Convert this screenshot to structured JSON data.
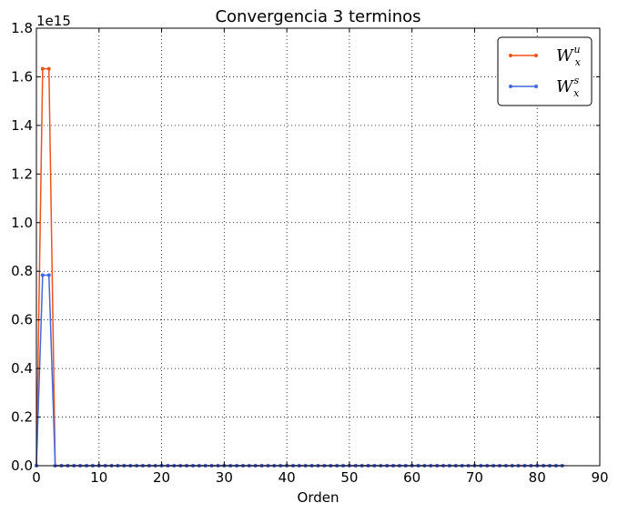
{
  "chart_data": {
    "type": "line",
    "title": "Convergencia 3 terminos",
    "xlabel": "Orden",
    "ylabel": "",
    "offset_text": "1e15",
    "xlim": [
      0,
      90
    ],
    "ylim": [
      0,
      1.8
    ],
    "xticks": [
      "0",
      "10",
      "20",
      "30",
      "40",
      "50",
      "60",
      "70",
      "80",
      "90"
    ],
    "yticks": [
      "0.0",
      "0.2",
      "0.4",
      "0.6",
      "0.8",
      "1.0",
      "1.2",
      "1.4",
      "1.6",
      "1.8"
    ],
    "grid": true,
    "legend_position": "top-right",
    "series": [
      {
        "name_base": "W",
        "name_sub": "x",
        "name_sup": "u",
        "color": "#f0521b",
        "x": [
          0,
          1,
          2,
          3,
          4,
          5,
          6,
          7,
          8,
          9,
          10,
          11,
          12,
          13,
          14,
          15,
          16,
          17,
          18,
          19,
          20,
          21,
          22,
          23,
          24,
          25,
          26,
          27,
          28,
          29,
          30,
          31,
          32,
          33,
          34,
          35,
          36,
          37,
          38,
          39,
          40,
          41,
          42,
          43,
          44,
          45,
          46,
          47,
          48,
          49,
          50,
          51,
          52,
          53,
          54,
          55,
          56,
          57,
          58,
          59,
          60,
          61,
          62,
          63,
          64,
          65,
          66,
          67,
          68,
          69,
          70,
          71,
          72,
          73,
          74,
          75,
          76,
          77,
          78,
          79,
          80,
          81,
          82,
          83,
          84
        ],
        "values": [
          0,
          1.633,
          1.633,
          0,
          0,
          0,
          0,
          0,
          0,
          0,
          0,
          0,
          0,
          0,
          0,
          0,
          0,
          0,
          0,
          0,
          0,
          0,
          0,
          0,
          0,
          0,
          0,
          0,
          0,
          0,
          0,
          0,
          0,
          0,
          0,
          0,
          0,
          0,
          0,
          0,
          0,
          0,
          0,
          0,
          0,
          0,
          0,
          0,
          0,
          0,
          0,
          0,
          0,
          0,
          0,
          0,
          0,
          0,
          0,
          0,
          0,
          0,
          0,
          0,
          0,
          0,
          0,
          0,
          0,
          0,
          0,
          0,
          0,
          0,
          0,
          0,
          0,
          0,
          0,
          0,
          0,
          0,
          0,
          0,
          0
        ]
      },
      {
        "name_base": "W",
        "name_sub": "x",
        "name_sup": "s",
        "color": "#4169e1",
        "x": [
          0,
          1,
          2,
          3,
          4,
          5,
          6,
          7,
          8,
          9,
          10,
          11,
          12,
          13,
          14,
          15,
          16,
          17,
          18,
          19,
          20,
          21,
          22,
          23,
          24,
          25,
          26,
          27,
          28,
          29,
          30,
          31,
          32,
          33,
          34,
          35,
          36,
          37,
          38,
          39,
          40,
          41,
          42,
          43,
          44,
          45,
          46,
          47,
          48,
          49,
          50,
          51,
          52,
          53,
          54,
          55,
          56,
          57,
          58,
          59,
          60,
          61,
          62,
          63,
          64,
          65,
          66,
          67,
          68,
          69,
          70,
          71,
          72,
          73,
          74,
          75,
          76,
          77,
          78,
          79,
          80,
          81,
          82,
          83,
          84
        ],
        "values": [
          0,
          0.784,
          0.784,
          0,
          0,
          0,
          0,
          0,
          0,
          0,
          0,
          0,
          0,
          0,
          0,
          0,
          0,
          0,
          0,
          0,
          0,
          0,
          0,
          0,
          0,
          0,
          0,
          0,
          0,
          0,
          0,
          0,
          0,
          0,
          0,
          0,
          0,
          0,
          0,
          0,
          0,
          0,
          0,
          0,
          0,
          0,
          0,
          0,
          0,
          0,
          0,
          0,
          0,
          0,
          0,
          0,
          0,
          0,
          0,
          0,
          0,
          0,
          0,
          0,
          0,
          0,
          0,
          0,
          0,
          0,
          0,
          0,
          0,
          0,
          0,
          0,
          0,
          0,
          0,
          0,
          0,
          0,
          0,
          0,
          0
        ]
      }
    ]
  }
}
